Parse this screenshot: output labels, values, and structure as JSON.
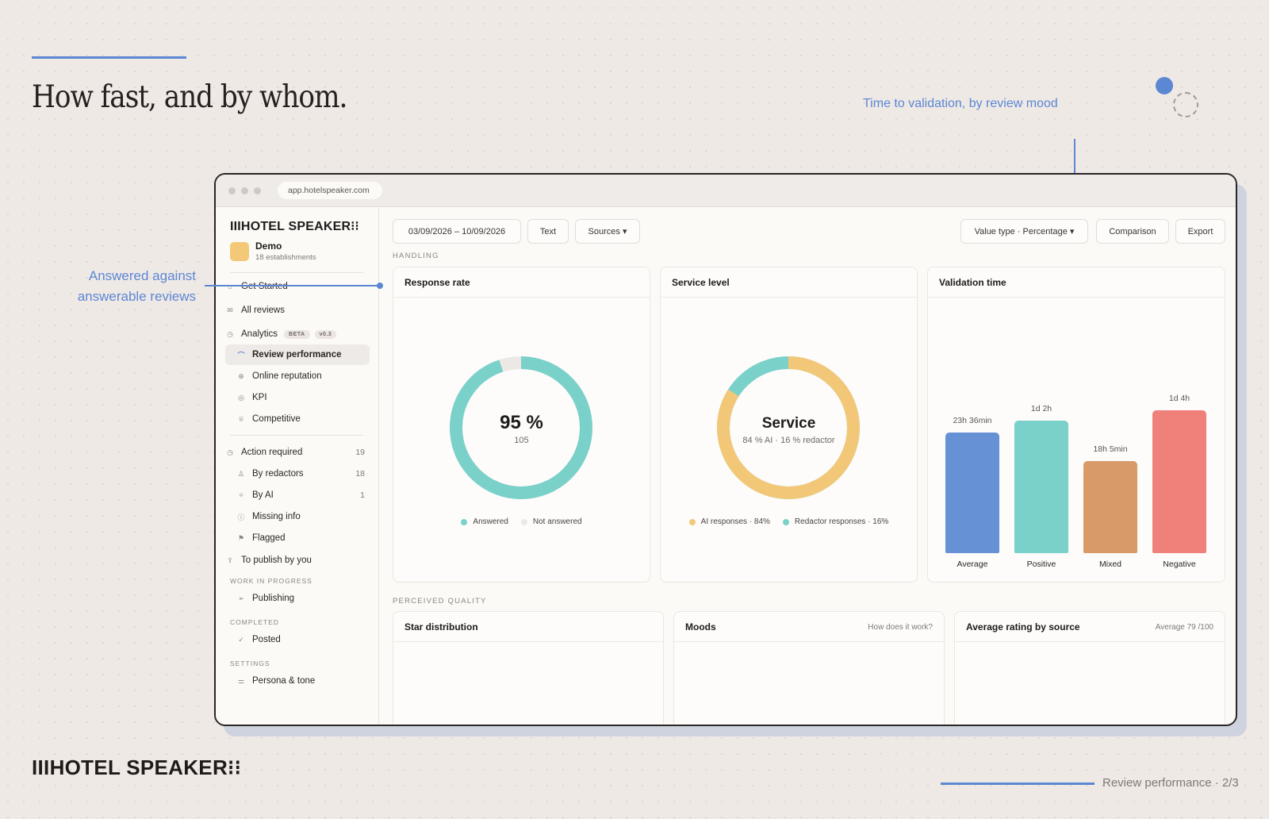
{
  "slide": {
    "headline": "How fast, and by whom.",
    "callout_right": "Time to validation, by review mood",
    "callout_left": "Answered against answerable reviews",
    "footer_logo": "IIIHOTEL SPEAKER⁝⁝",
    "footer_label": "Review performance · 2/3",
    "accent_color": "#5b87d3"
  },
  "browser": {
    "url": "app.hotelspeaker.com"
  },
  "sidebar": {
    "brand": "IIIHOTEL SPEAKER⁝⁝",
    "workspace": {
      "name": "Demo",
      "subtitle": "18 establishments"
    },
    "items": [
      {
        "label": "Get Started",
        "icon": "home-icon",
        "glyph": "⌂"
      },
      {
        "label": "All reviews",
        "icon": "inbox-icon",
        "glyph": "✉"
      },
      {
        "label": "Analytics",
        "icon": "clock-icon",
        "glyph": "◷",
        "badges": [
          "BETA",
          "v0.3"
        ]
      },
      {
        "label": "Review performance",
        "icon": "gauge-icon",
        "glyph": "⌒",
        "active": true
      },
      {
        "label": "Online reputation",
        "icon": "globe-icon",
        "glyph": "⊕"
      },
      {
        "label": "KPI",
        "icon": "target-icon",
        "glyph": "◎"
      },
      {
        "label": "Competitive",
        "icon": "trophy-icon",
        "glyph": "♕"
      },
      {
        "label": "Action required",
        "icon": "clock-icon",
        "glyph": "◷",
        "count": "19"
      },
      {
        "label": "By redactors",
        "icon": "user-icon",
        "glyph": "♙",
        "count": "18"
      },
      {
        "label": "By AI",
        "icon": "sparkle-icon",
        "glyph": "✧",
        "count": "1"
      },
      {
        "label": "Missing info",
        "icon": "info-icon",
        "glyph": "ⓘ"
      },
      {
        "label": "Flagged",
        "icon": "flag-icon",
        "glyph": "⚑"
      },
      {
        "label": "To publish by you",
        "icon": "upload-icon",
        "glyph": "⇪"
      },
      {
        "label": "Publishing",
        "icon": "send-icon",
        "glyph": "➢"
      },
      {
        "label": "Posted",
        "icon": "check-circle-icon",
        "glyph": "✓"
      },
      {
        "label": "Persona & tone",
        "icon": "sliders-icon",
        "glyph": "⚌"
      }
    ],
    "sections": [
      "WORK IN PROGRESS",
      "COMPLETED",
      "SETTINGS"
    ]
  },
  "toolbar": {
    "date_range": "03/09/2026 – 10/09/2026",
    "text_button": "Text",
    "sources_button": "Sources ▾",
    "value_type": "Value type · Percentage ▾",
    "comparison": "Comparison",
    "export": "Export"
  },
  "handling": {
    "label": "HANDLING",
    "response_rate": {
      "title": "Response rate",
      "center_value": "95 %",
      "center_sub": "105",
      "answered_pct": 95,
      "legend": [
        "Answered",
        "Not answered"
      ],
      "colors": [
        "#7ad1ca",
        "#ece8e4"
      ]
    },
    "service_level": {
      "title": "Service level",
      "center_value": "Service",
      "center_sub": "84 % AI · 16 % redactor",
      "ai_pct": 84,
      "legend": [
        "AI responses · 84%",
        "Redactor responses · 16%"
      ],
      "colors": [
        "#f2c878",
        "#7ad1ca"
      ]
    },
    "validation_time": {
      "title": "Validation time"
    }
  },
  "chart_data": {
    "type": "bar",
    "title": "Validation time",
    "unit": "hours",
    "categories": [
      "Average",
      "Positive",
      "Mixed",
      "Negative"
    ],
    "values": [
      23.6,
      26,
      18.1,
      28
    ],
    "value_labels": [
      "23h 36min",
      "1d 2h",
      "18h 5min",
      "1d 4h"
    ],
    "colors": [
      "#6691d4",
      "#7ad1ca",
      "#d79a68",
      "#ef807a"
    ],
    "ylim": [
      0,
      28
    ],
    "grid": false,
    "legend": "none"
  },
  "quality": {
    "label": "PERCEIVED QUALITY",
    "star_distribution": {
      "title": "Star distribution"
    },
    "moods": {
      "title": "Moods",
      "hint": "How does it work?"
    },
    "avg_rating": {
      "title": "Average rating by source",
      "hint": "Average 79 /100"
    }
  }
}
